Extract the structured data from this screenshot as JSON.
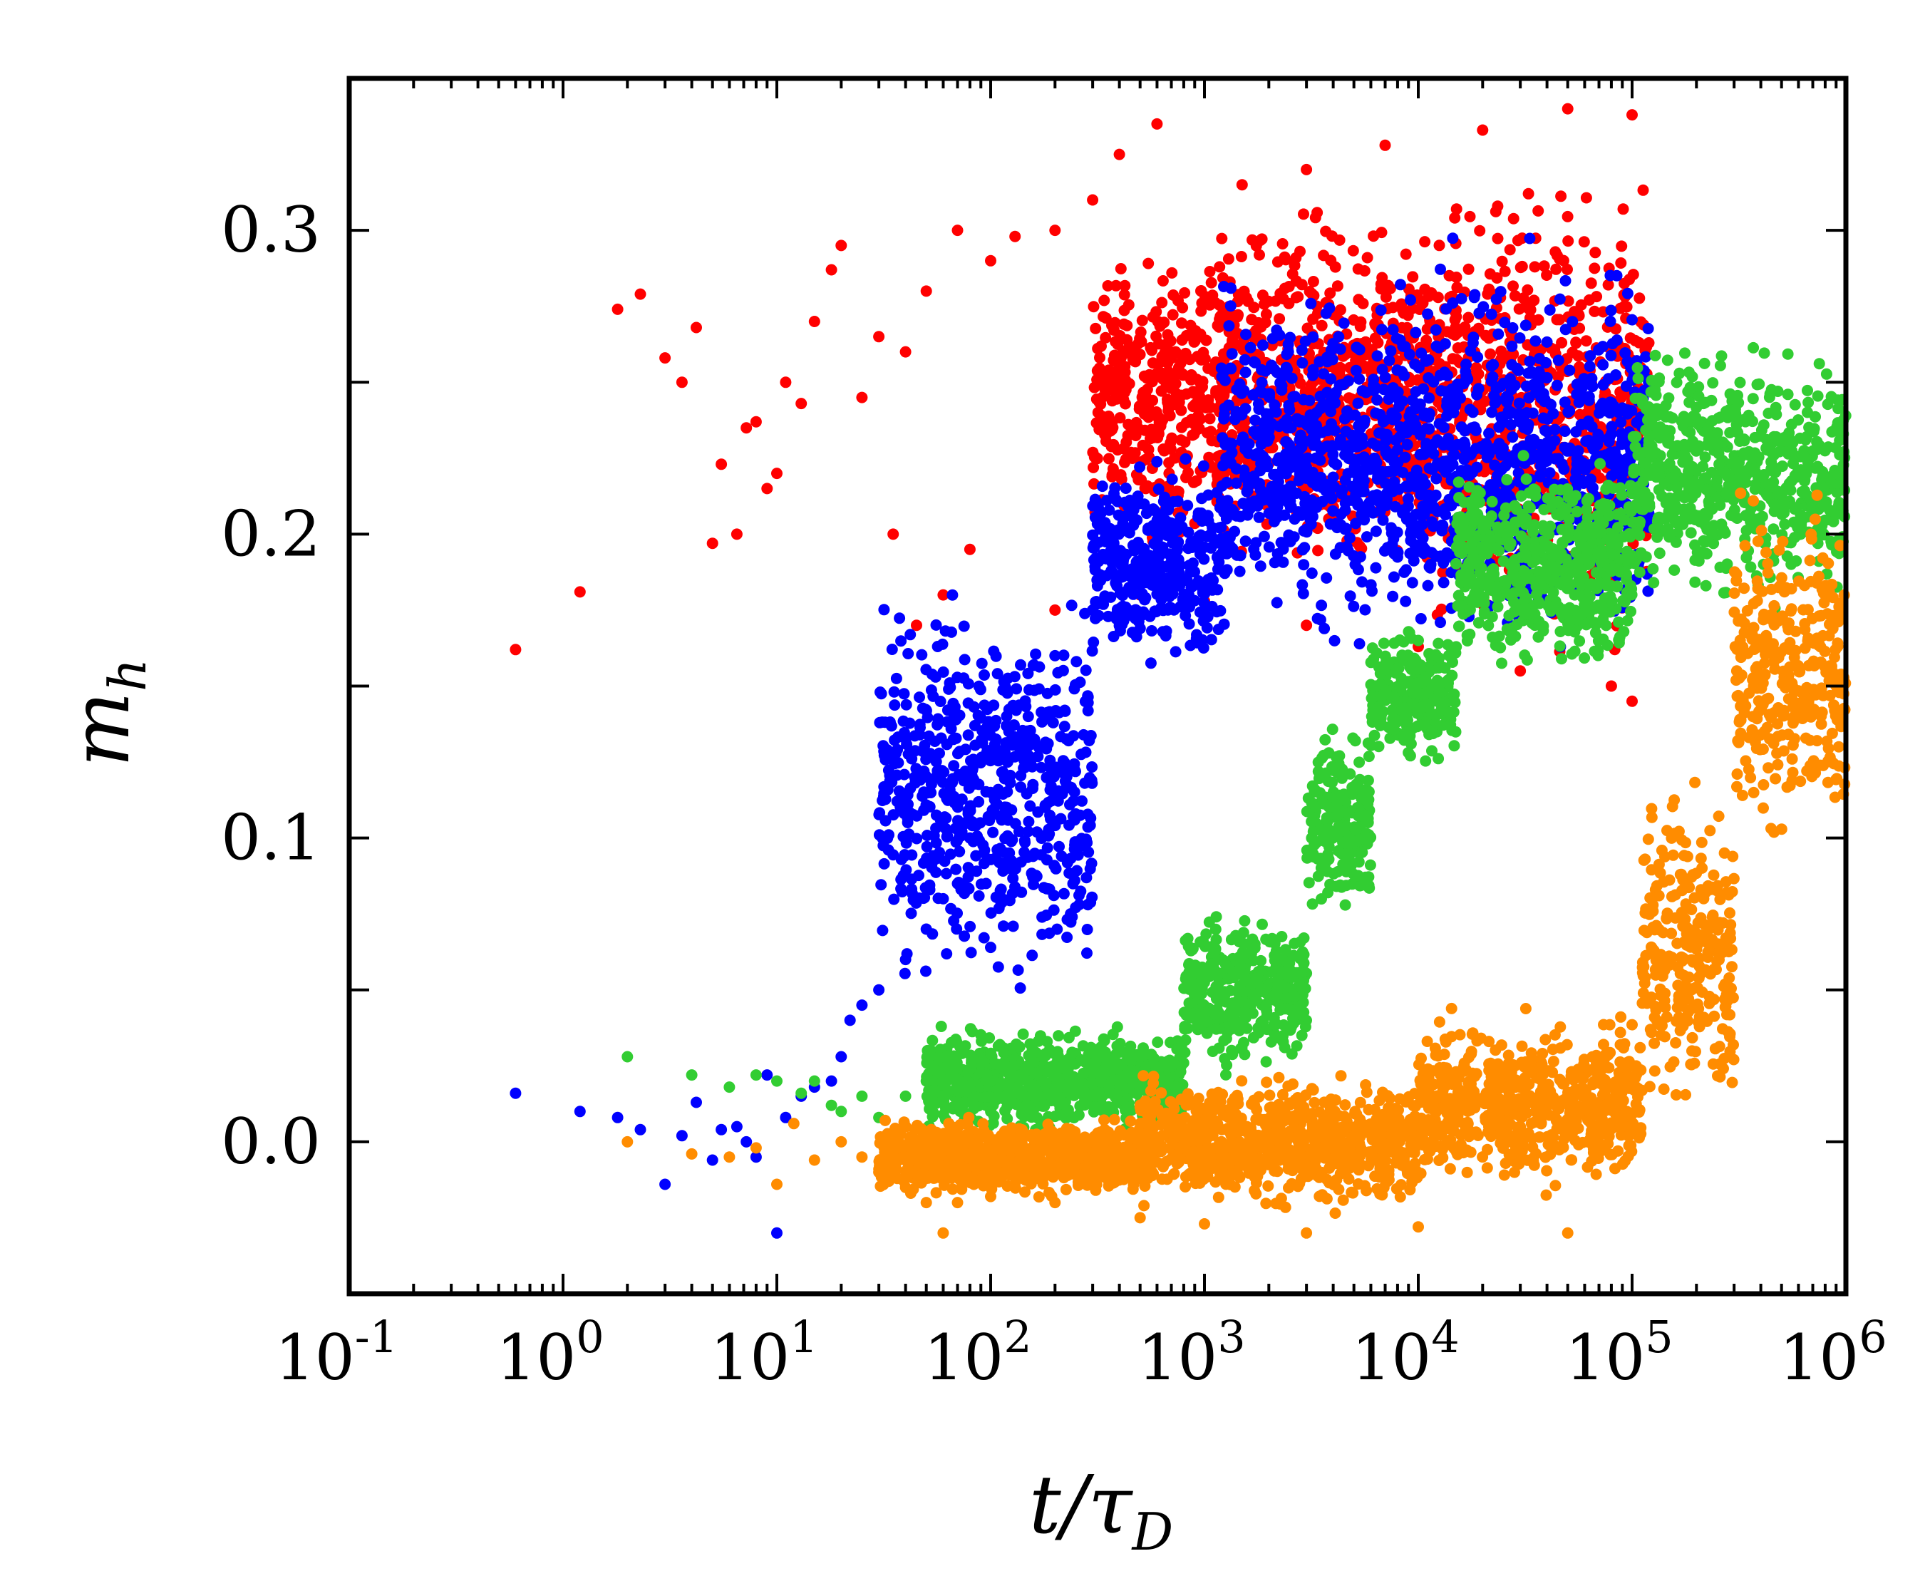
{
  "chart_data": {
    "type": "scatter",
    "title": "",
    "xlabel": "t/τ_D",
    "xlabel_main": "t/τ",
    "xlabel_sub": "D",
    "ylabel": "m_h",
    "ylabel_main": "m",
    "ylabel_sub": "h",
    "x_scale": "log",
    "xlim": [
      0.1,
      1000000
    ],
    "ylim": [
      -0.05,
      0.35
    ],
    "x_ticks": [
      {
        "base": "10",
        "exp": "-1",
        "value": 0.1
      },
      {
        "base": "10",
        "exp": "0",
        "value": 1
      },
      {
        "base": "10",
        "exp": "1",
        "value": 10
      },
      {
        "base": "10",
        "exp": "2",
        "value": 100
      },
      {
        "base": "10",
        "exp": "3",
        "value": 1000
      },
      {
        "base": "10",
        "exp": "4",
        "value": 10000
      },
      {
        "base": "10",
        "exp": "5",
        "value": 100000
      },
      {
        "base": "10",
        "exp": "6",
        "value": 1000000
      }
    ],
    "y_ticks": [
      {
        "label": "0.0",
        "value": 0.0
      },
      {
        "label": "0.1",
        "value": 0.1
      },
      {
        "label": "0.2",
        "value": 0.2
      },
      {
        "label": "0.3",
        "value": 0.3
      }
    ],
    "y_minor_ticks": [
      0.05,
      0.15,
      0.25
    ],
    "grid": false,
    "legend": "none",
    "series": [
      {
        "name": "red",
        "color": "#ff0000",
        "points": [
          [
            0.6,
            0.162
          ],
          [
            1.2,
            0.181
          ],
          [
            1.8,
            0.274
          ],
          [
            2.3,
            0.279
          ],
          [
            3,
            0.258
          ],
          [
            3.6,
            0.25
          ],
          [
            4.2,
            0.268
          ],
          [
            5,
            0.197
          ],
          [
            5.5,
            0.223
          ],
          [
            6.5,
            0.2
          ],
          [
            7.2,
            0.235
          ],
          [
            8,
            0.237
          ],
          [
            9,
            0.215
          ],
          [
            10,
            0.22
          ],
          [
            11,
            0.25
          ],
          [
            13,
            0.243
          ],
          [
            15,
            0.27
          ],
          [
            18,
            0.287
          ],
          [
            20,
            0.295
          ],
          [
            25,
            0.245
          ],
          [
            30,
            0.265
          ],
          [
            40,
            0.26
          ],
          [
            50,
            0.28
          ],
          [
            70,
            0.3
          ],
          [
            100,
            0.29
          ],
          [
            130,
            0.298
          ],
          [
            200,
            0.3
          ],
          [
            300,
            0.31
          ],
          [
            400,
            0.325
          ],
          [
            600,
            0.335
          ],
          [
            1500,
            0.315
          ],
          [
            3000,
            0.32
          ],
          [
            7000,
            0.328
          ],
          [
            20000,
            0.333
          ],
          [
            50000,
            0.34
          ],
          [
            100000,
            0.338
          ],
          [
            200,
            0.175
          ],
          [
            500,
            0.18
          ],
          [
            1000,
            0.178
          ],
          [
            3000,
            0.17
          ],
          [
            10000,
            0.163
          ],
          [
            30000,
            0.155
          ],
          [
            80000,
            0.15
          ],
          [
            100000,
            0.145
          ],
          [
            45,
            0.17
          ],
          [
            60,
            0.18
          ],
          [
            80,
            0.195
          ],
          [
            35,
            0.2
          ]
        ],
        "bands": [
          {
            "x": [
              300,
              1000
            ],
            "y": [
              0.19,
              0.3
            ]
          },
          {
            "x": [
              1000,
              10000
            ],
            "y": [
              0.175,
              0.315
            ]
          },
          {
            "x": [
              10000,
              120000
            ],
            "y": [
              0.15,
              0.33
            ]
          }
        ]
      },
      {
        "name": "blue",
        "color": "#0000ff",
        "points": [
          [
            0.6,
            0.016
          ],
          [
            1.2,
            0.01
          ],
          [
            1.8,
            0.008
          ],
          [
            2.3,
            0.004
          ],
          [
            3,
            -0.014
          ],
          [
            3.6,
            0.002
          ],
          [
            4.2,
            0.013
          ],
          [
            5,
            -0.006
          ],
          [
            5.5,
            0.004
          ],
          [
            6.5,
            0.005
          ],
          [
            7.2,
            0.0
          ],
          [
            8,
            -0.005
          ],
          [
            9,
            0.022
          ],
          [
            10,
            -0.03
          ],
          [
            11,
            0.008
          ],
          [
            13,
            0.015
          ],
          [
            15,
            0.018
          ],
          [
            18,
            0.02
          ],
          [
            20,
            0.028
          ],
          [
            22,
            0.04
          ],
          [
            25,
            0.045
          ],
          [
            30,
            0.05
          ],
          [
            40,
            0.06
          ],
          [
            50,
            0.07
          ],
          [
            60,
            0.08
          ],
          [
            70,
            0.085
          ],
          [
            80,
            0.1
          ],
          [
            100,
            0.115
          ],
          [
            120,
            0.125
          ],
          [
            150,
            0.14
          ],
          [
            200,
            0.16
          ],
          [
            300,
            0.175
          ],
          [
            500,
            0.19
          ]
        ],
        "bands": [
          {
            "x": [
              30,
              300
            ],
            "y": [
              0.04,
              0.19
            ]
          },
          {
            "x": [
              300,
              1200
            ],
            "y": [
              0.15,
              0.23
            ]
          },
          {
            "x": [
              1200,
              10000
            ],
            "y": [
              0.16,
              0.29
            ]
          },
          {
            "x": [
              10000,
              120000
            ],
            "y": [
              0.15,
              0.3
            ]
          }
        ]
      },
      {
        "name": "green",
        "color": "#32cd32",
        "points": [
          [
            2,
            0.028
          ],
          [
            4,
            0.022
          ],
          [
            6,
            0.018
          ],
          [
            8,
            0.022
          ],
          [
            10,
            0.02
          ],
          [
            13,
            0.016
          ],
          [
            15,
            0.02
          ],
          [
            18,
            0.012
          ],
          [
            20,
            0.01
          ],
          [
            25,
            0.015
          ],
          [
            30,
            0.008
          ],
          [
            40,
            0.015
          ],
          [
            50,
            0.02
          ],
          [
            60,
            0.015
          ],
          [
            80,
            0.018
          ],
          [
            100,
            0.02
          ],
          [
            150,
            0.02
          ],
          [
            200,
            0.025
          ],
          [
            300,
            0.03
          ]
        ],
        "bands": [
          {
            "x": [
              50,
              800
            ],
            "y": [
              0.0,
              0.04
            ]
          },
          {
            "x": [
              800,
              3000
            ],
            "y": [
              0.02,
              0.08
            ]
          },
          {
            "x": [
              3000,
              6000
            ],
            "y": [
              0.07,
              0.14
            ]
          },
          {
            "x": [
              6000,
              15000
            ],
            "y": [
              0.12,
              0.175
            ]
          },
          {
            "x": [
              15000,
              100000
            ],
            "y": [
              0.15,
              0.23
            ]
          },
          {
            "x": [
              100000,
              1000000
            ],
            "y": [
              0.17,
              0.27
            ]
          }
        ]
      },
      {
        "name": "orange",
        "color": "#ff8c00",
        "points": [
          [
            2,
            0.0
          ],
          [
            4,
            -0.004
          ],
          [
            6,
            -0.005
          ],
          [
            8,
            -0.002
          ],
          [
            10,
            -0.014
          ],
          [
            12,
            0.006
          ],
          [
            15,
            -0.006
          ],
          [
            20,
            0.0
          ],
          [
            25,
            -0.005
          ],
          [
            30,
            -0.01
          ],
          [
            40,
            -0.015
          ],
          [
            50,
            -0.02
          ],
          [
            60,
            -0.03
          ],
          [
            70,
            -0.02
          ],
          [
            100,
            -0.018
          ],
          [
            200,
            -0.02
          ],
          [
            500,
            -0.025
          ],
          [
            1000,
            -0.027
          ],
          [
            3000,
            -0.03
          ],
          [
            10000,
            -0.028
          ],
          [
            50000,
            -0.03
          ]
        ],
        "bands": [
          {
            "x": [
              30,
              500
            ],
            "y": [
              -0.02,
              0.01
            ]
          },
          {
            "x": [
              500,
              10000
            ],
            "y": [
              -0.025,
              0.025
            ]
          },
          {
            "x": [
              10000,
              110000
            ],
            "y": [
              -0.02,
              0.045
            ]
          },
          {
            "x": [
              110000,
              300000
            ],
            "y": [
              0.0,
              0.13
            ]
          },
          {
            "x": [
              300000,
              1000000
            ],
            "y": [
              0.09,
              0.22
            ]
          }
        ]
      }
    ]
  }
}
